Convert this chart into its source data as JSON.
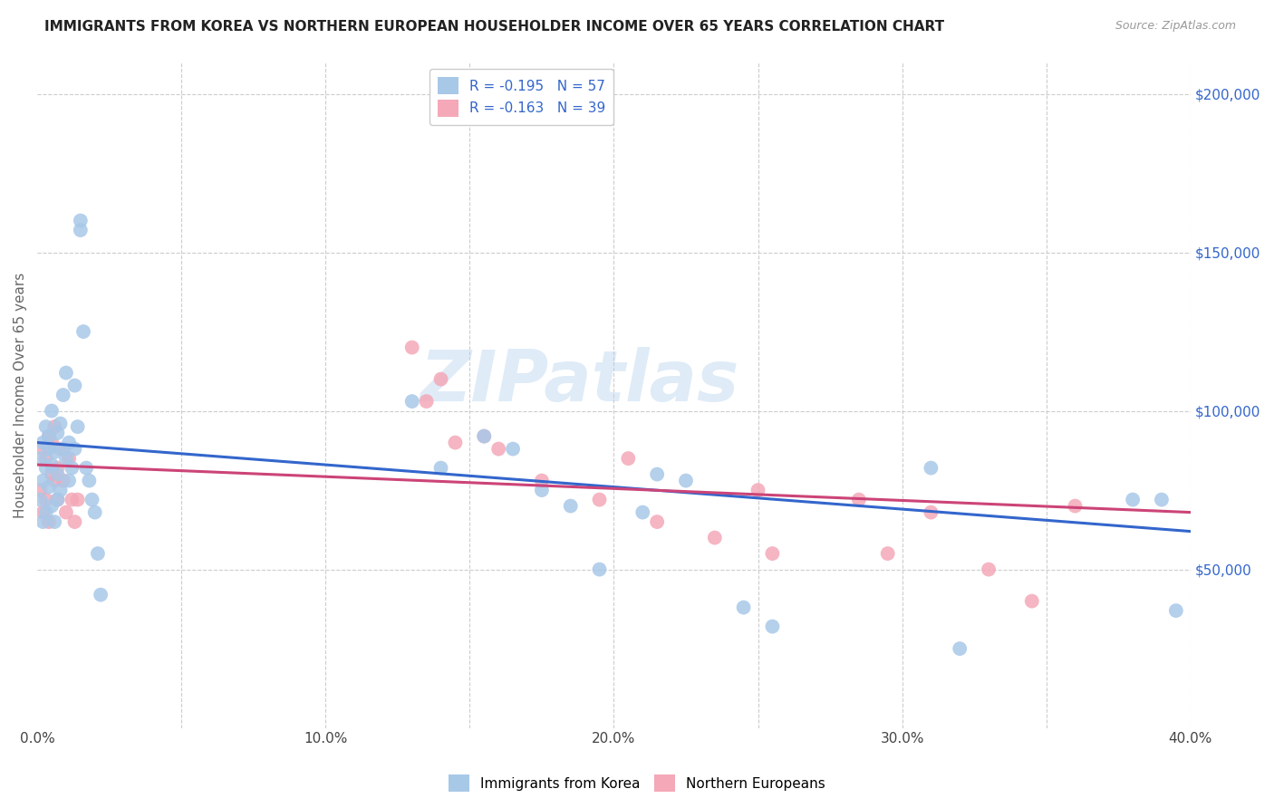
{
  "title": "IMMIGRANTS FROM KOREA VS NORTHERN EUROPEAN HOUSEHOLDER INCOME OVER 65 YEARS CORRELATION CHART",
  "source": "Source: ZipAtlas.com",
  "ylabel": "Householder Income Over 65 years",
  "xlim": [
    0.0,
    0.4
  ],
  "ylim": [
    0,
    210000
  ],
  "xtick_labels": [
    "0.0%",
    "10.0%",
    "20.0%",
    "30.0%",
    "40.0%"
  ],
  "xtick_vals": [
    0.0,
    0.1,
    0.2,
    0.3,
    0.4
  ],
  "ytick_labels": [
    "$50,000",
    "$100,000",
    "$150,000",
    "$200,000"
  ],
  "ytick_vals": [
    50000,
    100000,
    150000,
    200000
  ],
  "korea_color": "#a8c8e8",
  "northern_color": "#f4a8b8",
  "trendline_korea_color": "#3366cc",
  "trendline_northern_color": "#cc4477",
  "background_color": "#ffffff",
  "grid_color": "#cccccc",
  "watermark": "ZIPatlas",
  "legend_korea_label": "R = -0.195   N = 57",
  "legend_northern_label": "R = -0.163   N = 39",
  "korea_scatter_x": [
    0.001,
    0.001,
    0.002,
    0.002,
    0.002,
    0.003,
    0.003,
    0.003,
    0.004,
    0.004,
    0.004,
    0.005,
    0.005,
    0.005,
    0.006,
    0.006,
    0.007,
    0.007,
    0.007,
    0.008,
    0.008,
    0.009,
    0.009,
    0.01,
    0.01,
    0.011,
    0.011,
    0.012,
    0.013,
    0.013,
    0.014,
    0.015,
    0.015,
    0.016,
    0.017,
    0.018,
    0.019,
    0.02,
    0.021,
    0.022,
    0.13,
    0.14,
    0.155,
    0.165,
    0.175,
    0.185,
    0.195,
    0.21,
    0.215,
    0.225,
    0.245,
    0.255,
    0.31,
    0.32,
    0.38,
    0.39,
    0.395
  ],
  "korea_scatter_y": [
    85000,
    72000,
    90000,
    78000,
    65000,
    95000,
    82000,
    68000,
    88000,
    76000,
    92000,
    100000,
    70000,
    83000,
    87000,
    65000,
    93000,
    72000,
    80000,
    96000,
    75000,
    88000,
    105000,
    112000,
    85000,
    90000,
    78000,
    82000,
    108000,
    88000,
    95000,
    157000,
    160000,
    125000,
    82000,
    78000,
    72000,
    68000,
    55000,
    42000,
    103000,
    82000,
    92000,
    88000,
    75000,
    70000,
    50000,
    68000,
    80000,
    78000,
    38000,
    32000,
    82000,
    25000,
    72000,
    72000,
    37000
  ],
  "northern_scatter_x": [
    0.001,
    0.002,
    0.002,
    0.003,
    0.003,
    0.004,
    0.004,
    0.005,
    0.005,
    0.006,
    0.006,
    0.007,
    0.007,
    0.008,
    0.009,
    0.01,
    0.011,
    0.012,
    0.013,
    0.014,
    0.13,
    0.135,
    0.14,
    0.145,
    0.155,
    0.16,
    0.175,
    0.195,
    0.205,
    0.215,
    0.235,
    0.25,
    0.255,
    0.285,
    0.295,
    0.31,
    0.33,
    0.345,
    0.36
  ],
  "northern_scatter_y": [
    75000,
    88000,
    68000,
    85000,
    72000,
    92000,
    65000,
    80000,
    90000,
    78000,
    95000,
    72000,
    82000,
    88000,
    78000,
    68000,
    85000,
    72000,
    65000,
    72000,
    120000,
    103000,
    110000,
    90000,
    92000,
    88000,
    78000,
    72000,
    85000,
    65000,
    60000,
    75000,
    55000,
    72000,
    55000,
    68000,
    50000,
    40000,
    70000
  ],
  "korea_trend_x0": 0.0,
  "korea_trend_y0": 90000,
  "korea_trend_x1": 0.4,
  "korea_trend_y1": 62000,
  "northern_trend_x0": 0.0,
  "northern_trend_y0": 83000,
  "northern_trend_x1": 0.4,
  "northern_trend_y1": 68000
}
